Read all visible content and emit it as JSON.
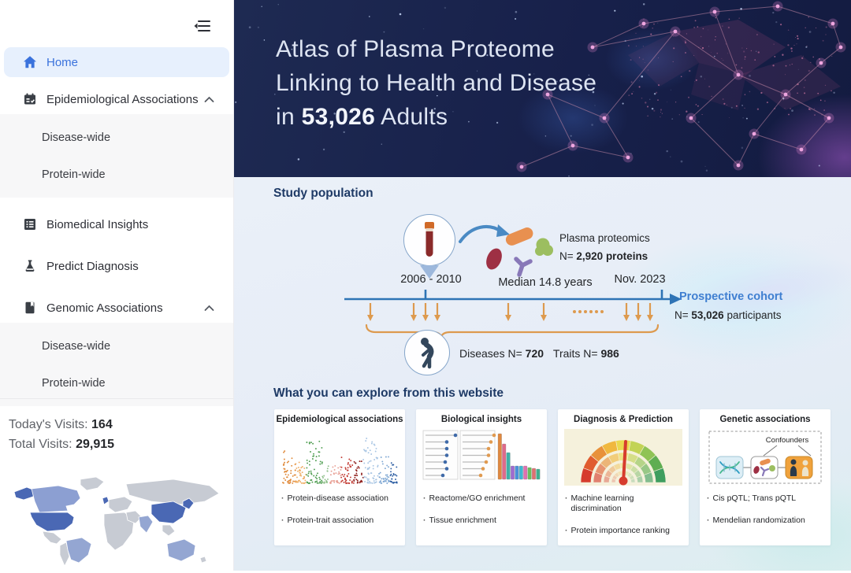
{
  "sidebar": {
    "items": [
      {
        "label": "Home"
      },
      {
        "label": "Epidemiological Associations",
        "children": [
          "Disease-wide",
          "Protein-wide"
        ]
      },
      {
        "label": "Biomedical Insights"
      },
      {
        "label": "Predict Diagnosis"
      },
      {
        "label": "Genomic Associations",
        "children": [
          "Disease-wide",
          "Protein-wide"
        ]
      }
    ],
    "stats": {
      "today_label": "Today's Visits:",
      "today_value": "164",
      "total_label": "Total Visits:",
      "total_value": "29,915"
    }
  },
  "hero": {
    "line1": "Atlas of Plasma Proteome",
    "line2": "Linking to Health and Disease",
    "line3_prefix": "in ",
    "line3_bold": "53,026",
    "line3_suffix": " Adults"
  },
  "study": {
    "heading": "Study population",
    "plasma_title": "Plasma proteomics",
    "plasma_prefix": "N= ",
    "plasma_bold": "2,920",
    "plasma_suffix": " proteins",
    "baseline": "2006 - 2010",
    "median": "Median 14.8 years",
    "end_date": "Nov. 2023",
    "cohort_title": "Prospective cohort",
    "cohort_prefix": "N= ",
    "cohort_bold": "53,026",
    "cohort_suffix": " participants",
    "diseases_prefix": "Diseases N= ",
    "diseases_bold": "720",
    "traits_prefix": "Traits N= ",
    "traits_bold": "986",
    "dots": "······"
  },
  "explore": {
    "heading": "What you can explore from this website",
    "bullet_char": "·",
    "cards": [
      {
        "title": "Epidemiological associations",
        "bullets": [
          "Protein-disease association",
          "Protein-trait association"
        ]
      },
      {
        "title": "Biological insights",
        "bullets": [
          "Reactome/GO enrichment",
          "Tissue enrichment"
        ]
      },
      {
        "title": "Diagnosis & Prediction",
        "bullets": [
          "Machine learning discrimination",
          "Protein importance ranking"
        ]
      },
      {
        "title": "Genetic associations",
        "confounders_label": "Confounders",
        "bullets": [
          "Cis pQTL; Trans pQTL",
          "Mendelian randomization"
        ]
      }
    ]
  },
  "colors": {
    "accent_blue": "#3a72dc",
    "hero_bg": "#1b2750",
    "timeline_blue": "#2e74b5",
    "orange": "#dd9a4e",
    "cohort_blue": "#3f7fd1",
    "map_dark": "#4a68b4",
    "map_mid": "#8c9fd2"
  }
}
